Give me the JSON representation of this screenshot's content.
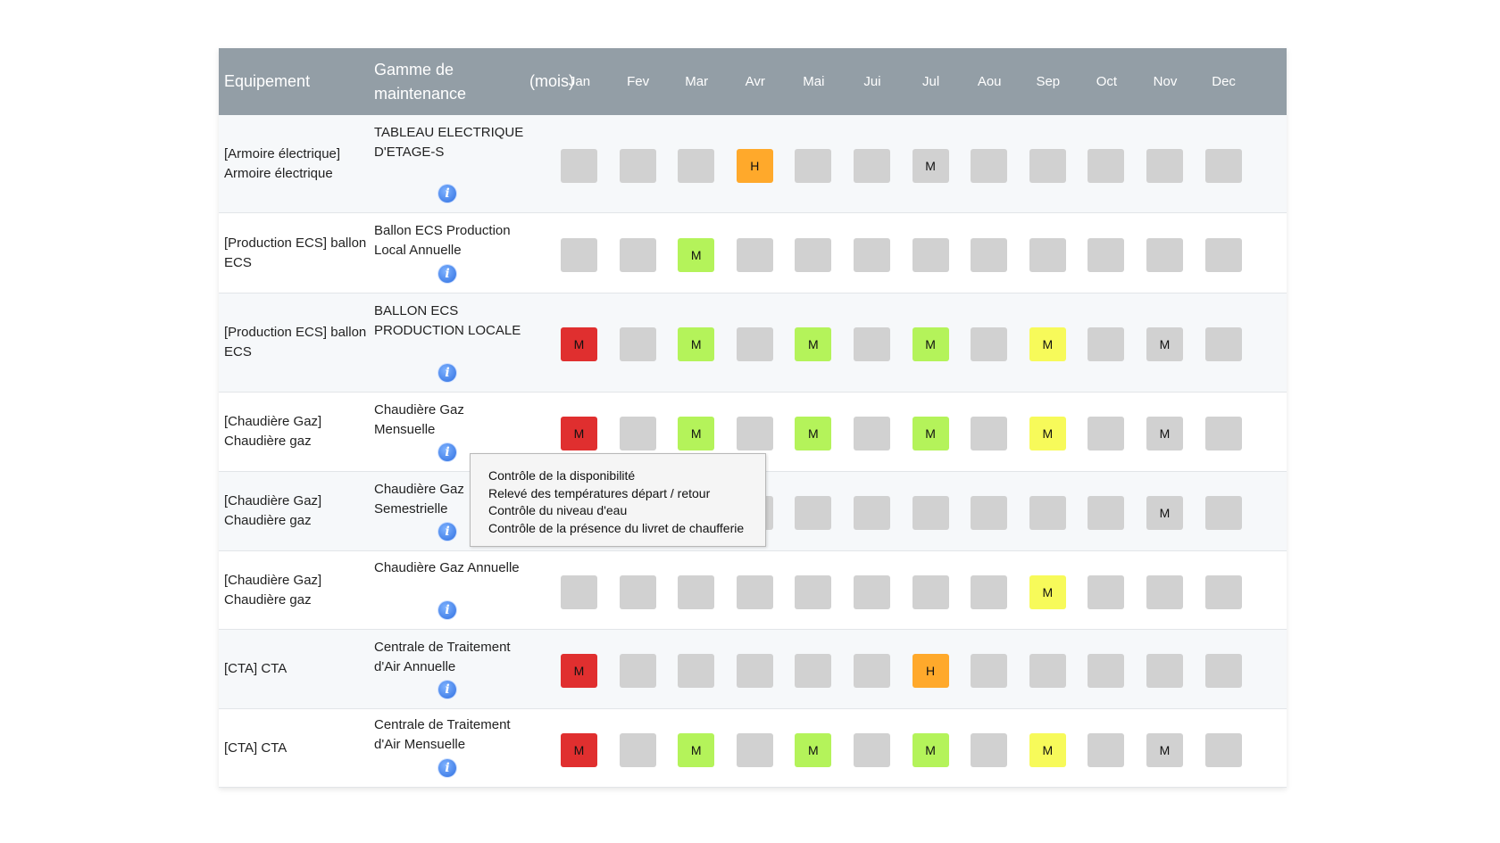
{
  "header": {
    "equipement": "Equipement",
    "gamme": "Gamme de maintenance",
    "mois": "(mois)",
    "months": [
      "Jan",
      "Fev",
      "Mar",
      "Avr",
      "Mai",
      "Jui",
      "Jul",
      "Aou",
      "Sep",
      "Oct",
      "Nov",
      "Dec"
    ]
  },
  "rows": [
    {
      "equip": "[Armoire électrique] Armoire électrique",
      "gamme": "TABLEAU ELECTRIQUE D'ETAGE-S",
      "cells": [
        {
          "s": "gray",
          "l": ""
        },
        {
          "s": "gray",
          "l": ""
        },
        {
          "s": "gray",
          "l": ""
        },
        {
          "s": "orange",
          "l": "H"
        },
        {
          "s": "gray",
          "l": ""
        },
        {
          "s": "gray",
          "l": ""
        },
        {
          "s": "gray",
          "l": "M"
        },
        {
          "s": "gray",
          "l": ""
        },
        {
          "s": "gray",
          "l": ""
        },
        {
          "s": "gray",
          "l": ""
        },
        {
          "s": "gray",
          "l": ""
        },
        {
          "s": "gray",
          "l": ""
        }
      ]
    },
    {
      "equip": "[Production ECS] ballon ECS",
      "gamme": "Ballon ECS Production Local Annuelle",
      "cells": [
        {
          "s": "gray",
          "l": ""
        },
        {
          "s": "gray",
          "l": ""
        },
        {
          "s": "green",
          "l": "M"
        },
        {
          "s": "gray",
          "l": ""
        },
        {
          "s": "gray",
          "l": ""
        },
        {
          "s": "gray",
          "l": ""
        },
        {
          "s": "gray",
          "l": ""
        },
        {
          "s": "gray",
          "l": ""
        },
        {
          "s": "gray",
          "l": ""
        },
        {
          "s": "gray",
          "l": ""
        },
        {
          "s": "gray",
          "l": ""
        },
        {
          "s": "gray",
          "l": ""
        }
      ]
    },
    {
      "equip": "[Production ECS] ballon ECS",
      "gamme": "BALLON ECS PRODUCTION LOCALE",
      "cells": [
        {
          "s": "red",
          "l": "M"
        },
        {
          "s": "gray",
          "l": ""
        },
        {
          "s": "green",
          "l": "M"
        },
        {
          "s": "gray",
          "l": ""
        },
        {
          "s": "green",
          "l": "M"
        },
        {
          "s": "gray",
          "l": ""
        },
        {
          "s": "green",
          "l": "M"
        },
        {
          "s": "gray",
          "l": ""
        },
        {
          "s": "yellow",
          "l": "M"
        },
        {
          "s": "gray",
          "l": ""
        },
        {
          "s": "gray",
          "l": "M"
        },
        {
          "s": "gray",
          "l": ""
        }
      ]
    },
    {
      "equip": "[Chaudière Gaz] Chaudière gaz",
      "gamme": "Chaudière Gaz Mensuelle",
      "cells": [
        {
          "s": "red",
          "l": "M"
        },
        {
          "s": "gray",
          "l": ""
        },
        {
          "s": "green",
          "l": "M"
        },
        {
          "s": "gray",
          "l": ""
        },
        {
          "s": "green",
          "l": "M"
        },
        {
          "s": "gray",
          "l": ""
        },
        {
          "s": "green",
          "l": "M"
        },
        {
          "s": "gray",
          "l": ""
        },
        {
          "s": "yellow",
          "l": "M"
        },
        {
          "s": "gray",
          "l": ""
        },
        {
          "s": "gray",
          "l": "M"
        },
        {
          "s": "gray",
          "l": ""
        }
      ]
    },
    {
      "equip": "[Chaudière Gaz] Chaudière gaz",
      "gamme": "Chaudière Gaz Semestrielle",
      "cells": [
        {
          "s": "gray",
          "l": ""
        },
        {
          "s": "gray",
          "l": ""
        },
        {
          "s": "gray",
          "l": ""
        },
        {
          "s": "gray",
          "l": ""
        },
        {
          "s": "gray",
          "l": ""
        },
        {
          "s": "gray",
          "l": ""
        },
        {
          "s": "gray",
          "l": ""
        },
        {
          "s": "gray",
          "l": ""
        },
        {
          "s": "gray",
          "l": ""
        },
        {
          "s": "gray",
          "l": ""
        },
        {
          "s": "gray",
          "l": "M"
        },
        {
          "s": "gray",
          "l": ""
        }
      ]
    },
    {
      "equip": "[Chaudière Gaz] Chaudière gaz",
      "gamme": "Chaudière Gaz Annuelle",
      "cells": [
        {
          "s": "gray",
          "l": ""
        },
        {
          "s": "gray",
          "l": ""
        },
        {
          "s": "gray",
          "l": ""
        },
        {
          "s": "gray",
          "l": ""
        },
        {
          "s": "gray",
          "l": ""
        },
        {
          "s": "gray",
          "l": ""
        },
        {
          "s": "gray",
          "l": ""
        },
        {
          "s": "gray",
          "l": ""
        },
        {
          "s": "yellow",
          "l": "M"
        },
        {
          "s": "gray",
          "l": ""
        },
        {
          "s": "gray",
          "l": ""
        },
        {
          "s": "gray",
          "l": ""
        }
      ]
    },
    {
      "equip": "[CTA] CTA",
      "gamme": "Centrale de Traitement d'Air Annuelle",
      "cells": [
        {
          "s": "red",
          "l": "M"
        },
        {
          "s": "gray",
          "l": ""
        },
        {
          "s": "gray",
          "l": ""
        },
        {
          "s": "gray",
          "l": ""
        },
        {
          "s": "gray",
          "l": ""
        },
        {
          "s": "gray",
          "l": ""
        },
        {
          "s": "orange",
          "l": "H"
        },
        {
          "s": "gray",
          "l": ""
        },
        {
          "s": "gray",
          "l": ""
        },
        {
          "s": "gray",
          "l": ""
        },
        {
          "s": "gray",
          "l": ""
        },
        {
          "s": "gray",
          "l": ""
        }
      ]
    },
    {
      "equip": "[CTA] CTA",
      "gamme": "Centrale de Traitement d'Air Mensuelle",
      "cells": [
        {
          "s": "red",
          "l": "M"
        },
        {
          "s": "gray",
          "l": ""
        },
        {
          "s": "green",
          "l": "M"
        },
        {
          "s": "gray",
          "l": ""
        },
        {
          "s": "green",
          "l": "M"
        },
        {
          "s": "gray",
          "l": ""
        },
        {
          "s": "green",
          "l": "M"
        },
        {
          "s": "gray",
          "l": ""
        },
        {
          "s": "yellow",
          "l": "M"
        },
        {
          "s": "gray",
          "l": ""
        },
        {
          "s": "gray",
          "l": "M"
        },
        {
          "s": "gray",
          "l": ""
        }
      ]
    }
  ],
  "tooltip": {
    "lines": [
      "Contrôle de la disponibilité",
      "Relevé des températures départ / retour",
      "Contrôle du niveau d'eau",
      "Contrôle de la présence du livret de chaufferie"
    ]
  },
  "icons": {
    "info": "info-icon"
  },
  "colors": {
    "header_bg": "#939ea6",
    "cell_gray": "#d1d1d1",
    "cell_red": "#e02f2f",
    "cell_green": "#b4f35a",
    "cell_yellow": "#f7fa5a",
    "cell_orange": "#ffa92b"
  }
}
